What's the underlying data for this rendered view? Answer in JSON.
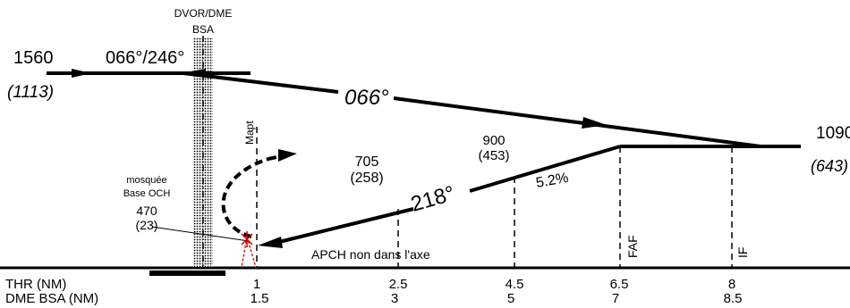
{
  "station": {
    "name_line1": "DVOR/DME",
    "name_line2": "BSA"
  },
  "initial": {
    "altitude": "1560",
    "height": "(1113)",
    "radial": "066°/246°",
    "outbound_track": "066°"
  },
  "turn_point": {
    "altitude": "1090",
    "height": "(643)"
  },
  "procedure": {
    "approach_track": "218°",
    "gradient": "5.2%",
    "note": "APCH non dans l'axe",
    "mapt_label": "Mapt",
    "faf_label": "FAF",
    "if_label": "IF"
  },
  "step_fixes": [
    {
      "altitude": "705",
      "height": "(258)"
    },
    {
      "altitude": "900",
      "height": "(453)"
    }
  ],
  "obstacle": {
    "line1": "mosquée",
    "line2": "Base OCH",
    "line3": "470",
    "line4": "(23)"
  },
  "scale": {
    "thr_label": "THR (NM)",
    "dme_label": "DME BSA (NM)",
    "thr_values": [
      "1",
      "2.5",
      "4.5",
      "6.5",
      "8"
    ],
    "dme_values": [
      "1.5",
      "3",
      "5",
      "7",
      "8.5"
    ]
  }
}
